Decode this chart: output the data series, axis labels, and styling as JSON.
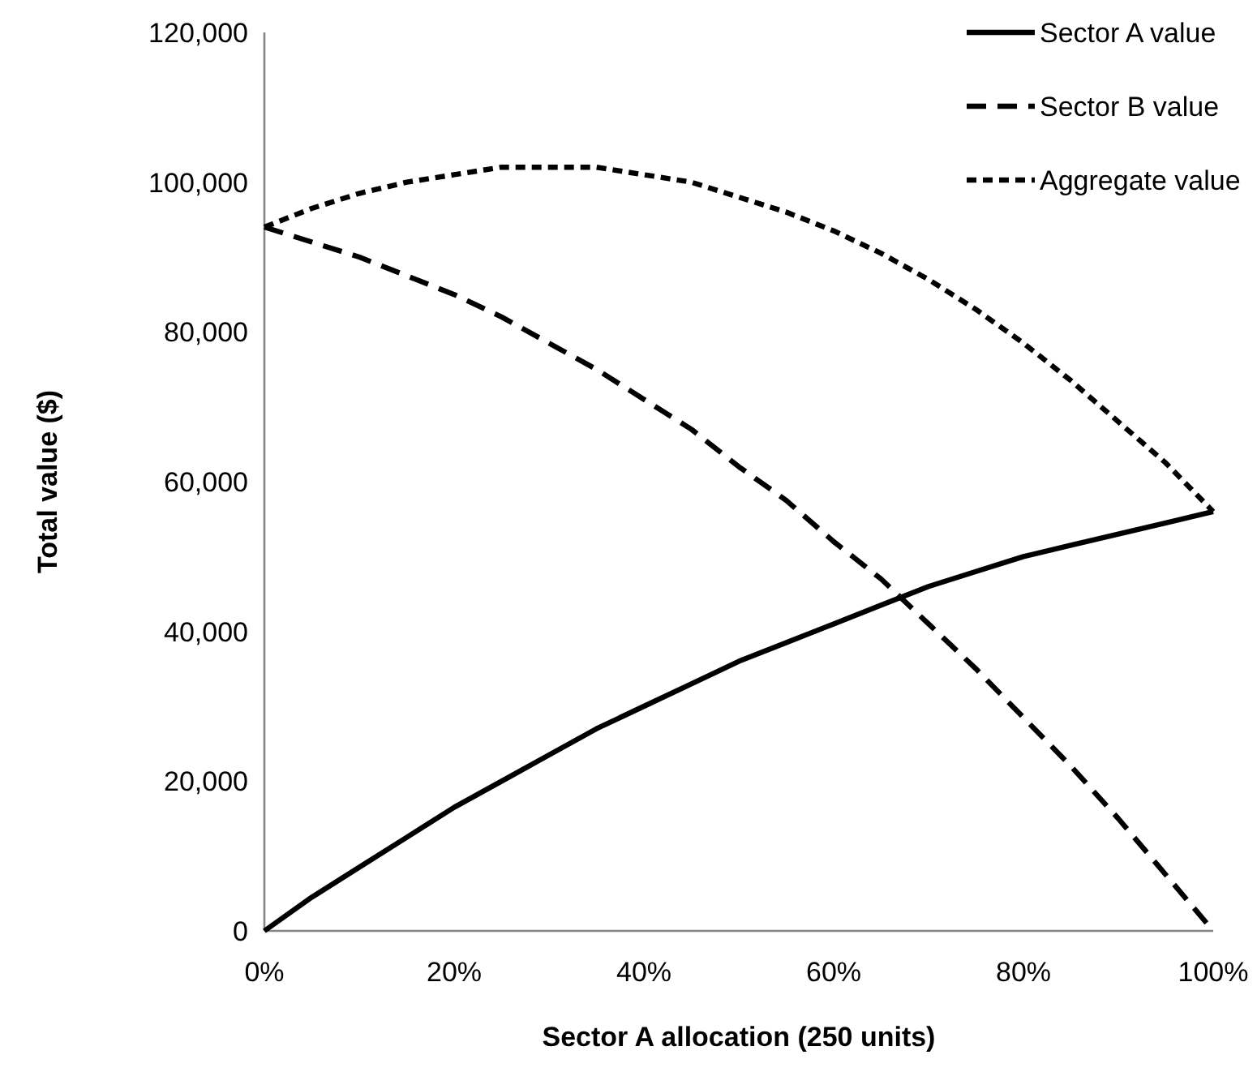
{
  "chart_data": {
    "type": "line",
    "xlabel": "Sector A allocation (250 units)",
    "ylabel": "Total value ($)",
    "x": [
      0,
      5,
      10,
      15,
      20,
      25,
      30,
      35,
      40,
      45,
      50,
      55,
      60,
      65,
      70,
      75,
      80,
      85,
      90,
      95,
      100
    ],
    "series": [
      {
        "name": "Sector A value",
        "color": "#000000",
        "line_style": "solid",
        "values": [
          0,
          4500,
          8500,
          12500,
          16500,
          20000,
          23500,
          27000,
          30000,
          33000,
          36000,
          38500,
          41000,
          43500,
          46000,
          48000,
          50000,
          51500,
          53000,
          54500,
          56000
        ]
      },
      {
        "name": "Sector B value",
        "color": "#000000",
        "line_style": "dashed",
        "values": [
          94000,
          92000,
          90000,
          87500,
          85000,
          82000,
          78500,
          75000,
          71000,
          67000,
          62000,
          57500,
          52000,
          47000,
          41000,
          35000,
          28500,
          22000,
          15000,
          7500,
          0
        ]
      },
      {
        "name": "Aggregate value",
        "color": "#000000",
        "line_style": "dotted",
        "values": [
          94000,
          96500,
          98500,
          100000,
          101000,
          102000,
          102000,
          102000,
          101000,
          100000,
          98000,
          96000,
          93500,
          90500,
          87000,
          83000,
          78500,
          73500,
          68000,
          62500,
          56000
        ]
      }
    ],
    "xlim": [
      0,
      100
    ],
    "xticks": [
      {
        "value": 0,
        "label": "0%"
      },
      {
        "value": 20,
        "label": "20%"
      },
      {
        "value": 40,
        "label": "40%"
      },
      {
        "value": 60,
        "label": "60%"
      },
      {
        "value": 80,
        "label": "80%"
      },
      {
        "value": 100,
        "label": "100%"
      }
    ],
    "ylim": [
      0,
      120000
    ],
    "yticks": [
      {
        "value": 0,
        "label": "0"
      },
      {
        "value": 20000,
        "label": "20,000"
      },
      {
        "value": 40000,
        "label": "40,000"
      },
      {
        "value": 60000,
        "label": "60,000"
      },
      {
        "value": 80000,
        "label": "80,000"
      },
      {
        "value": 100000,
        "label": "100,000"
      },
      {
        "value": 120000,
        "label": "120,000"
      }
    ],
    "grid": false,
    "legend": "top right"
  }
}
